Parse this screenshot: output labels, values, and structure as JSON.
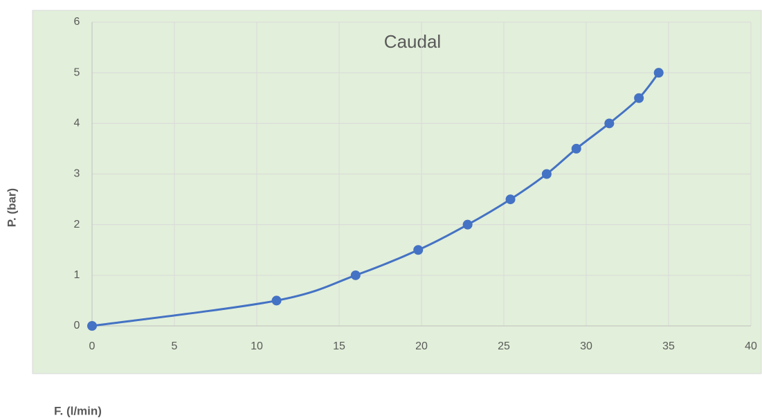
{
  "chart_data": {
    "type": "scatter",
    "title": "Caudal",
    "xlabel": "F. (l/min)",
    "ylabel": "P. (bar)",
    "x": [
      0,
      11.2,
      16,
      19.8,
      22.8,
      25.4,
      27.6,
      29.4,
      31.4,
      33.2,
      34.4
    ],
    "values": [
      0,
      0.5,
      1,
      1.5,
      2,
      2.5,
      3,
      3.5,
      4,
      4.5,
      5
    ],
    "color": "#4472c4",
    "smooth": true,
    "xlim": [
      0,
      40
    ],
    "xticks": [
      0,
      5,
      10,
      15,
      20,
      25,
      30,
      35,
      40
    ],
    "ylim": [
      0,
      6
    ],
    "yticks": [
      0,
      1,
      2,
      3,
      4,
      5,
      6
    ],
    "grid": true
  }
}
